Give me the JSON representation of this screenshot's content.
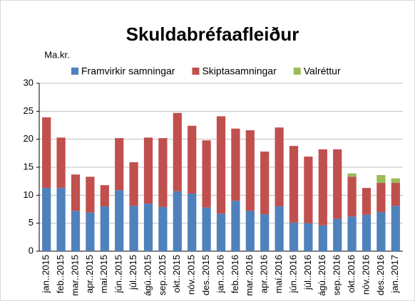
{
  "chart_data": {
    "type": "stacked_bar",
    "title": "Skuldabréfaafleiður",
    "y_label": "Ma.kr.",
    "categories": [
      "jan..2015",
      "feb..2015",
      "mar..2015",
      "apr..2015",
      "maí.2015",
      "jún..2015",
      "júl..2015",
      "ágú..2015",
      "sep..2015",
      "okt..2015",
      "nóv..2015",
      "des..2015",
      "jan..2016",
      "feb..2016",
      "mar..2016",
      "apr..2016",
      "maí.2016",
      "jún..2016",
      "júl..2016",
      "ágú..2016",
      "sep..2016",
      "okt..2016",
      "nóv..2016",
      "des..2016",
      "jan..2017"
    ],
    "series": [
      {
        "name": "Framvirkir samningar",
        "color": "#4f81bd",
        "values": [
          11.3,
          11.3,
          7.2,
          6.9,
          8.0,
          10.9,
          8.1,
          8.5,
          7.9,
          10.7,
          10.3,
          7.8,
          6.7,
          9.0,
          7.2,
          6.6,
          8.0,
          5.1,
          5.0,
          4.6,
          5.8,
          6.2,
          6.5,
          7.0,
          8.1
        ]
      },
      {
        "name": "Skiptasamningar",
        "color": "#c0504d",
        "values": [
          12.6,
          9.0,
          6.5,
          6.4,
          3.8,
          9.3,
          7.8,
          11.8,
          12.3,
          14.0,
          12.1,
          12.0,
          17.4,
          12.9,
          14.4,
          11.2,
          14.1,
          13.7,
          11.9,
          13.6,
          12.4,
          7.1,
          4.8,
          5.2,
          4.1
        ]
      },
      {
        "name": "Valréttur",
        "color": "#9bbb59",
        "values": [
          0,
          0,
          0,
          0,
          0,
          0,
          0,
          0,
          0,
          0,
          0,
          0,
          0,
          0,
          0,
          0,
          0,
          0,
          0,
          0,
          0,
          0.6,
          0,
          1.4,
          0.8
        ]
      }
    ],
    "ylim": [
      0,
      30
    ],
    "yticks": [
      0,
      5,
      10,
      15,
      20,
      25,
      30
    ],
    "grid": true
  }
}
